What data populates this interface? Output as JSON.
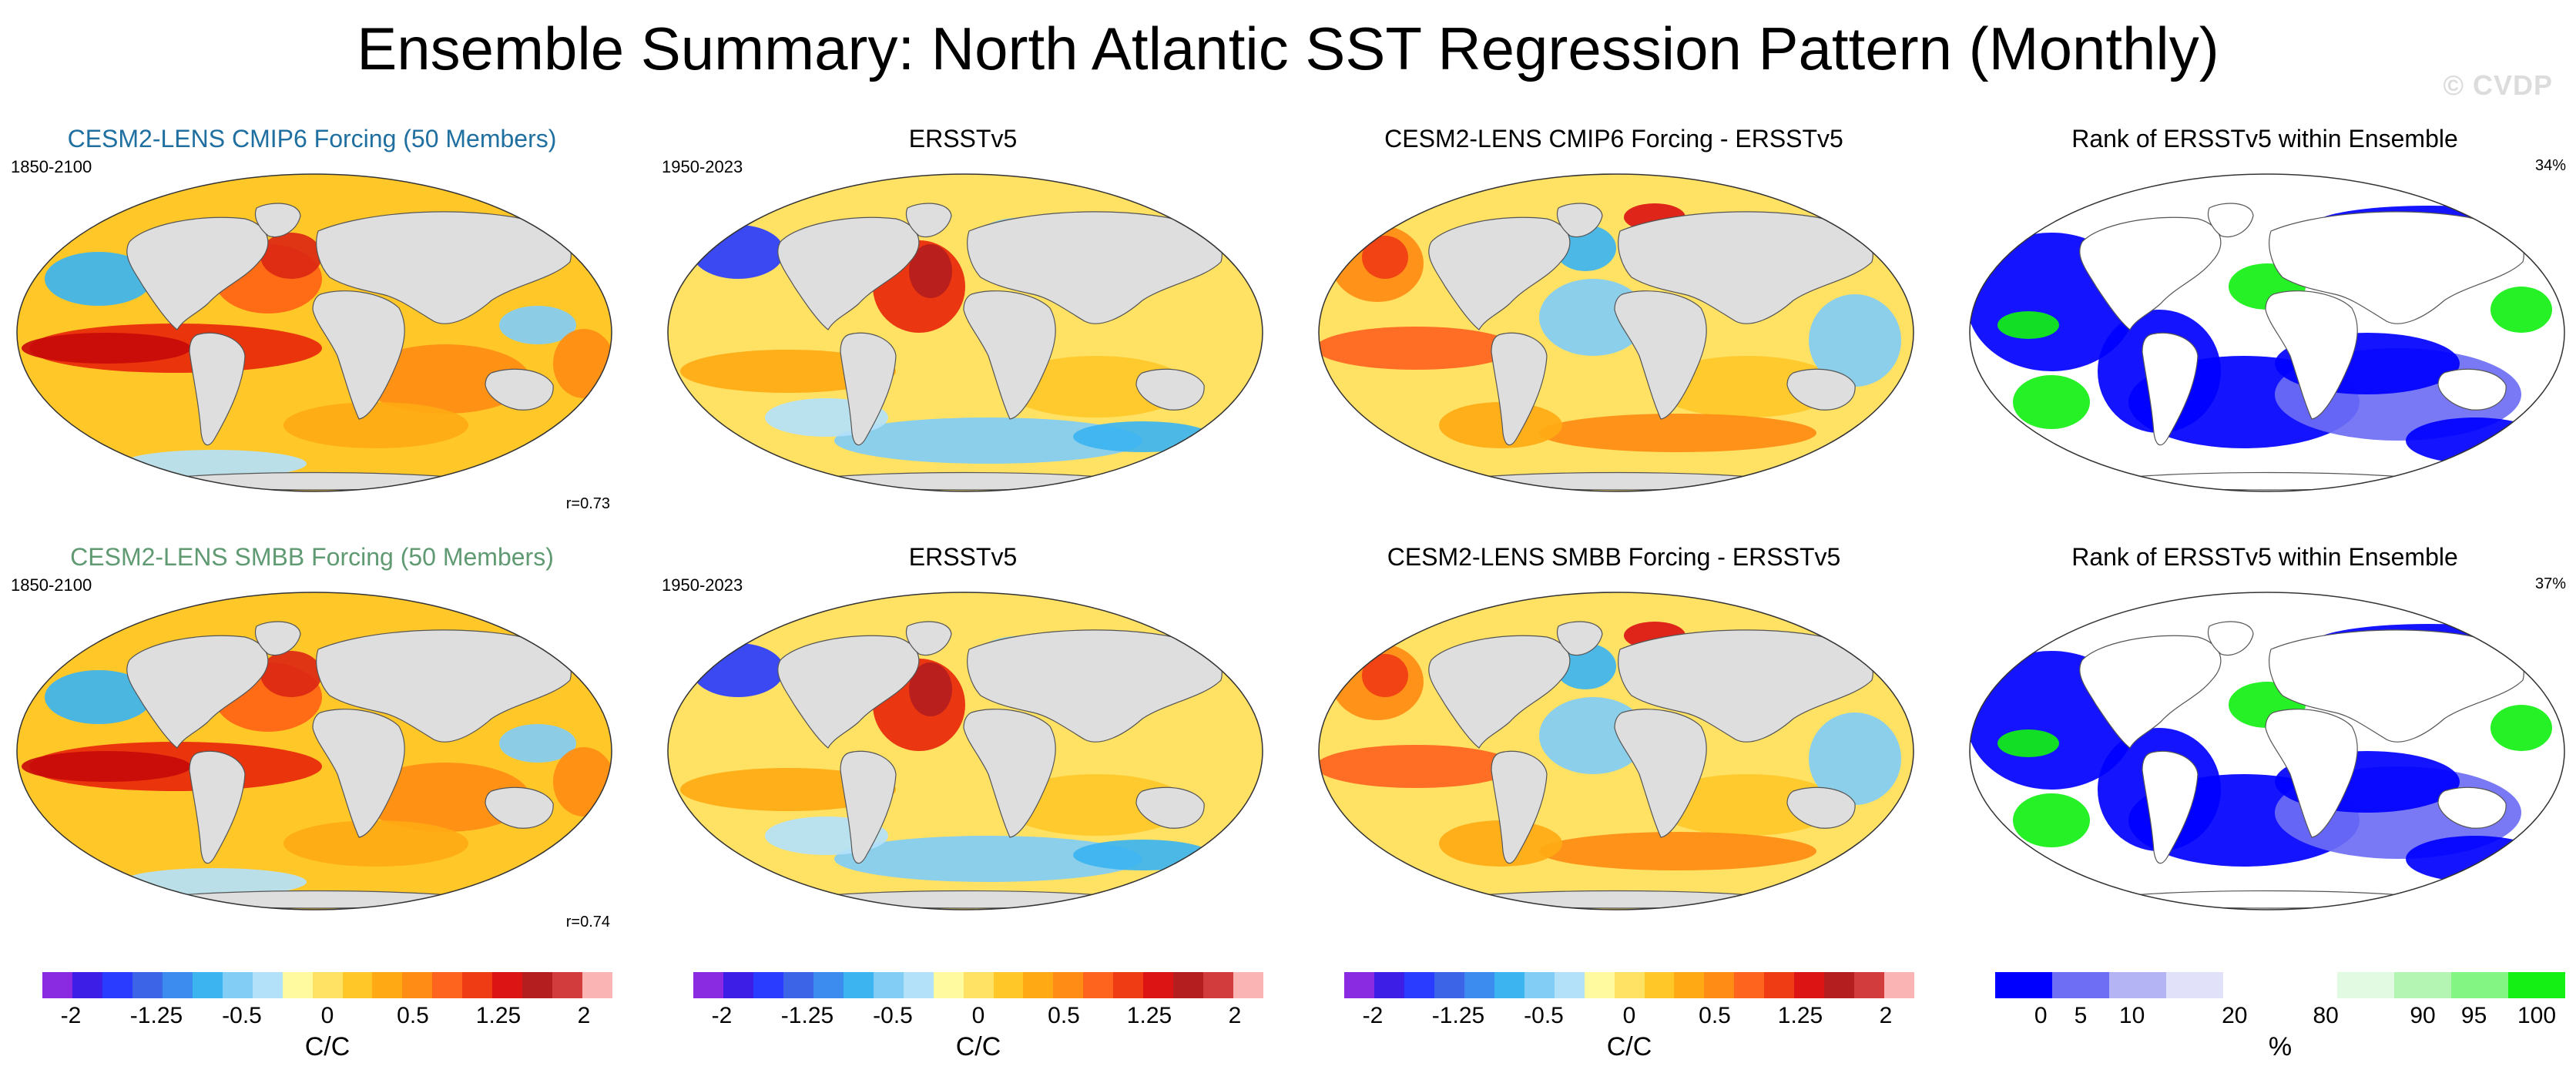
{
  "figure": {
    "title": "Ensemble Summary: North Atlantic SST Regression Pattern (Monthly)",
    "watermark": "© CVDP"
  },
  "panels": [
    {
      "title": "CESM2-LENS CMIP6 Forcing (50 Members)",
      "years": "1850-2100",
      "r": "r=0.73",
      "kind": "model",
      "title_color": "blue"
    },
    {
      "title": "ERSSTv5",
      "years": "1950-2023",
      "kind": "obs"
    },
    {
      "title": "CESM2-LENS CMIP6 Forcing - ERSSTv5",
      "kind": "diff"
    },
    {
      "title": "Rank of ERSSTv5 within Ensemble",
      "pct": "34%",
      "kind": "rank"
    },
    {
      "title": "CESM2-LENS SMBB Forcing (50 Members)",
      "years": "1850-2100",
      "r": "r=0.74",
      "kind": "model",
      "title_color": "green"
    },
    {
      "title": "ERSSTv5",
      "years": "1950-2023",
      "kind": "obs"
    },
    {
      "title": "CESM2-LENS SMBB Forcing - ERSSTv5",
      "kind": "diff"
    },
    {
      "title": "Rank of ERSSTv5 within Ensemble",
      "pct": "37%",
      "kind": "rank"
    }
  ],
  "colorbars": {
    "sst": {
      "colors": [
        "#8a2be2",
        "#3c1ee6",
        "#2a3cff",
        "#3c64e6",
        "#3c8cf0",
        "#3cb4f0",
        "#82cdf5",
        "#b4e1fa",
        "#fffaa0",
        "#ffe164",
        "#ffc828",
        "#ffaa14",
        "#ff8c14",
        "#ff641e",
        "#f03c14",
        "#dc1414",
        "#b41e1e",
        "#d23c3c",
        "#fab4b4"
      ],
      "ticks": [
        "-2",
        "-1.25",
        "-0.5",
        "0",
        "0.5",
        "1.25",
        "2"
      ],
      "unit": "C/C"
    },
    "rank": {
      "colors": [
        "#0000ff",
        "#6e6ef5",
        "#b4b4f5",
        "#e1e1fa",
        "#ffffff",
        "#ffffff",
        "#e1fae1",
        "#b4f5b4",
        "#82f582",
        "#14f014"
      ],
      "ticks": [
        "0",
        "5",
        "10",
        "20",
        "80",
        "90",
        "95",
        "100"
      ],
      "unit": "%"
    }
  }
}
